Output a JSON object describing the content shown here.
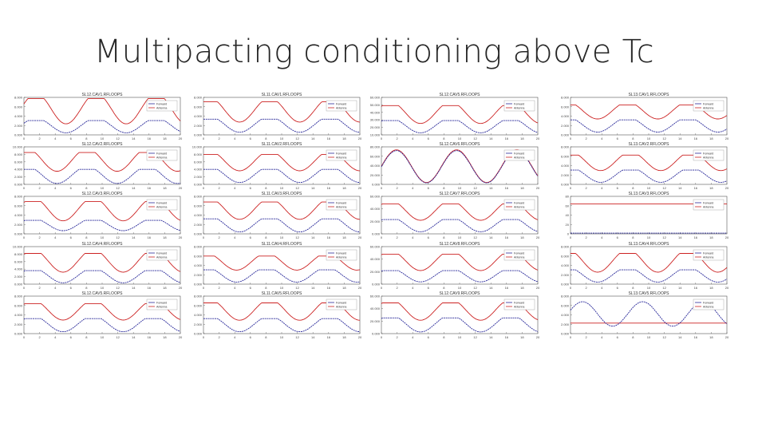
{
  "slide": {
    "title": "Multipacting conditioning above Tc"
  },
  "colors": {
    "forward": "#cc2222",
    "antenna": "#2a2a9a",
    "axis": "#555555",
    "grid": "#e6e6e6"
  },
  "chart_data": [
    {
      "type": "line",
      "title": "SL12.CAV1.RFLOOPS",
      "xlim": [
        0,
        20
      ],
      "yticks": [
        "0.000",
        "2.000",
        "4.000",
        "6.000",
        "8.000"
      ],
      "xticks": [
        "0",
        "2",
        "4",
        "6",
        "8",
        "10",
        "12",
        "14",
        "16",
        "18",
        "20"
      ],
      "legend": [
        "Forward",
        "Antenna"
      ],
      "legend_position": "top-right",
      "series": [
        {
          "name": "Forward",
          "level": 0.97,
          "low": 0.43,
          "phase": 0.05
        },
        {
          "name": "Antenna",
          "level": 0.38,
          "low": 0.12,
          "phase": 0.05
        }
      ]
    },
    {
      "type": "line",
      "title": "SL11.CAV1.RFLOOPS",
      "xlim": [
        0,
        20
      ],
      "yticks": [
        "0.000",
        "2.000",
        "4.000",
        "6.000",
        "8.000"
      ],
      "xticks": [
        "0",
        "2",
        "4",
        "6",
        "8",
        "10",
        "12",
        "14",
        "16",
        "18",
        "20"
      ],
      "legend": [
        "Forward",
        "Antenna"
      ],
      "legend_position": "top-right",
      "series": [
        {
          "name": "Forward",
          "level": 0.88,
          "low": 0.45,
          "phase": 0.15
        },
        {
          "name": "Antenna",
          "level": 0.42,
          "low": 0.14,
          "phase": 0.15
        }
      ]
    },
    {
      "type": "line",
      "title": "SL12.CAV5.RFLOOPS",
      "xlim": [
        0,
        20
      ],
      "yticks": [
        "10.000",
        "20.000",
        "30.000",
        "40.000",
        "50.000",
        "60.000"
      ],
      "xticks": [
        "0",
        "2",
        "4",
        "6",
        "8",
        "10",
        "12",
        "14",
        "16",
        "18",
        "20"
      ],
      "legend": [
        "Forward",
        "Antenna"
      ],
      "legend_position": "top-right",
      "series": [
        {
          "name": "Forward",
          "level": 0.78,
          "low": 0.4,
          "phase": 0.1
        },
        {
          "name": "Antenna",
          "level": 0.38,
          "low": 0.12,
          "phase": 0.1
        }
      ]
    },
    {
      "type": "line",
      "title": "SL13.CAV1.RFLOOPS",
      "xlim": [
        0,
        20
      ],
      "yticks": [
        "0.000",
        "2.000",
        "4.000",
        "6.000",
        "8.000"
      ],
      "xticks": [
        "0",
        "2",
        "4",
        "6",
        "8",
        "10",
        "12",
        "14",
        "16",
        "18",
        "20"
      ],
      "legend": [
        "Forward",
        "Antenna"
      ],
      "legend_position": "top-right",
      "series": [
        {
          "name": "Forward",
          "level": 0.8,
          "low": 0.5,
          "phase": 0.3
        },
        {
          "name": "Antenna",
          "level": 0.4,
          "low": 0.14,
          "phase": 0.3
        }
      ]
    },
    {
      "type": "line",
      "title": "SL12.CAV2.RFLOOPS",
      "xlim": [
        0,
        20
      ],
      "yticks": [
        "0.000",
        "2.000",
        "4.000",
        "6.000",
        "8.000",
        "10.000"
      ],
      "xticks": [
        "0",
        "2",
        "4",
        "6",
        "8",
        "10",
        "12",
        "14",
        "16",
        "18",
        "20"
      ],
      "legend": [
        "Forward",
        "Antenna"
      ],
      "legend_position": "top-right",
      "series": [
        {
          "name": "Forward",
          "level": 0.85,
          "low": 0.45,
          "phase": 0.2
        },
        {
          "name": "Antenna",
          "level": 0.4,
          "low": 0.1,
          "phase": 0.2
        }
      ]
    },
    {
      "type": "line",
      "title": "SL11.CAV2.RFLOOPS",
      "xlim": [
        0,
        20
      ],
      "yticks": [
        "0.000",
        "2.000",
        "4.000",
        "6.000",
        "8.000",
        "10.000"
      ],
      "xticks": [
        "0",
        "2",
        "4",
        "6",
        "8",
        "10",
        "12",
        "14",
        "16",
        "18",
        "20"
      ],
      "legend": [
        "Forward",
        "Antenna"
      ],
      "legend_position": "top-right",
      "series": [
        {
          "name": "Forward",
          "level": 0.8,
          "low": 0.45,
          "phase": 0.15
        },
        {
          "name": "Antenna",
          "level": 0.4,
          "low": 0.12,
          "phase": 0.15
        }
      ]
    },
    {
      "type": "line",
      "title": "SL12.CAV6.RFLOOPS",
      "xlim": [
        0,
        20
      ],
      "yticks": [
        "0.000",
        "20.000",
        "40.000",
        "60.000",
        "80.000"
      ],
      "xticks": [
        "0",
        "2",
        "4",
        "6",
        "8",
        "10",
        "12",
        "14",
        "16",
        "18",
        "20"
      ],
      "legend": [
        "Forward",
        "Antenna"
      ],
      "legend_position": "top-right",
      "series": [
        {
          "name": "Forward",
          "level": 0.92,
          "low": 0.05,
          "phase": 0.0,
          "pure": true
        },
        {
          "name": "Antenna",
          "level": 0.9,
          "low": 0.04,
          "phase": 0.0,
          "pure": true
        }
      ]
    },
    {
      "type": "line",
      "title": "SL13.CAV2.RFLOOPS",
      "xlim": [
        0,
        20
      ],
      "yticks": [
        "0.000",
        "2.000",
        "4.000",
        "6.000",
        "8.000"
      ],
      "xticks": [
        "0",
        "2",
        "4",
        "6",
        "8",
        "10",
        "12",
        "14",
        "16",
        "18",
        "20"
      ],
      "legend": [
        "Forward",
        "Antenna"
      ],
      "legend_position": "top-right",
      "series": [
        {
          "name": "Forward",
          "level": 0.78,
          "low": 0.45,
          "phase": 0.25
        },
        {
          "name": "Antenna",
          "level": 0.38,
          "low": 0.12,
          "phase": 0.25
        }
      ]
    },
    {
      "type": "line",
      "title": "SL12.CAV3.RFLOOPS",
      "xlim": [
        0,
        20
      ],
      "yticks": [
        "0.000",
        "2.000",
        "4.000",
        "6.000",
        "8.000"
      ],
      "xticks": [
        "0",
        "2",
        "4",
        "6",
        "8",
        "10",
        "12",
        "14",
        "16",
        "18",
        "20"
      ],
      "legend": [
        "Forward",
        "Antenna"
      ],
      "legend_position": "top-right",
      "series": [
        {
          "name": "Forward",
          "level": 0.86,
          "low": 0.45,
          "phase": 0.1
        },
        {
          "name": "Antenna",
          "level": 0.36,
          "low": 0.14,
          "phase": 0.1
        }
      ]
    },
    {
      "type": "line",
      "title": "SL11.CAV3.RFLOOPS",
      "xlim": [
        0,
        20
      ],
      "yticks": [
        "0.000",
        "2.000",
        "4.000",
        "6.000",
        "8.000"
      ],
      "xticks": [
        "0",
        "2",
        "4",
        "6",
        "8",
        "10",
        "12",
        "14",
        "16",
        "18",
        "20"
      ],
      "legend": [
        "Forward",
        "Antenna"
      ],
      "legend_position": "top-right",
      "series": [
        {
          "name": "Forward",
          "level": 0.85,
          "low": 0.48,
          "phase": 0.15
        },
        {
          "name": "Antenna",
          "level": 0.4,
          "low": 0.12,
          "phase": 0.15
        }
      ]
    },
    {
      "type": "line",
      "title": "SL12.CAV7.RFLOOPS",
      "xlim": [
        0,
        20
      ],
      "yticks": [
        "0.000",
        "20.000",
        "40.000",
        "60.000"
      ],
      "xticks": [
        "0",
        "2",
        "4",
        "6",
        "8",
        "10",
        "12",
        "14",
        "16",
        "18",
        "20"
      ],
      "legend": [
        "Forward",
        "Antenna"
      ],
      "legend_position": "top-right",
      "series": [
        {
          "name": "Forward",
          "level": 0.8,
          "low": 0.45,
          "phase": 0.1
        },
        {
          "name": "Antenna",
          "level": 0.38,
          "low": 0.12,
          "phase": 0.1
        }
      ]
    },
    {
      "type": "line",
      "title": "SL13.CAV3.RFLOOPS",
      "xlim": [
        0,
        20
      ],
      "yticks": [
        "0",
        "20",
        "40",
        "60",
        "80"
      ],
      "xticks": [
        "0",
        "2",
        "4",
        "6",
        "8",
        "10",
        "12",
        "14",
        "16",
        "18",
        "20"
      ],
      "legend": [
        "Forward",
        "Antenna"
      ],
      "legend_position": "top-right",
      "series": [
        {
          "name": "Forward",
          "level": 0.8,
          "low": 0.8,
          "phase": 0.0,
          "flat": true
        },
        {
          "name": "Antenna",
          "level": 0.02,
          "low": 0.02,
          "phase": 0.0,
          "flat": true
        }
      ]
    },
    {
      "type": "line",
      "title": "SL12.CAV4.RFLOOPS",
      "xlim": [
        0,
        20
      ],
      "yticks": [
        "0.000",
        "2.000",
        "4.000",
        "6.000",
        "8.000",
        "10.000"
      ],
      "xticks": [
        "0",
        "2",
        "4",
        "6",
        "8",
        "10",
        "12",
        "14",
        "16",
        "18",
        "20"
      ],
      "legend": [
        "Forward",
        "Antenna"
      ],
      "legend_position": "top-right",
      "series": [
        {
          "name": "Forward",
          "level": 0.82,
          "low": 0.42,
          "phase": 0.1
        },
        {
          "name": "Antenna",
          "level": 0.36,
          "low": 0.1,
          "phase": 0.1
        }
      ]
    },
    {
      "type": "line",
      "title": "SL11.CAV4.RFLOOPS",
      "xlim": [
        0,
        20
      ],
      "yticks": [
        "0.000",
        "2.000",
        "4.000",
        "6.000",
        "8.000"
      ],
      "xticks": [
        "0",
        "2",
        "4",
        "6",
        "8",
        "10",
        "12",
        "14",
        "16",
        "18",
        "20"
      ],
      "legend": [
        "Forward",
        "Antenna"
      ],
      "legend_position": "top-right",
      "series": [
        {
          "name": "Forward",
          "level": 0.75,
          "low": 0.45,
          "phase": 0.2
        },
        {
          "name": "Antenna",
          "level": 0.38,
          "low": 0.12,
          "phase": 0.2
        }
      ]
    },
    {
      "type": "line",
      "title": "SL12.CAV8.RFLOOPS",
      "xlim": [
        0,
        20
      ],
      "yticks": [
        "0.000",
        "20.000",
        "40.000",
        "60.000"
      ],
      "xticks": [
        "0",
        "2",
        "4",
        "6",
        "8",
        "10",
        "12",
        "14",
        "16",
        "18",
        "20"
      ],
      "legend": [
        "Forward",
        "Antenna"
      ],
      "legend_position": "top-right",
      "series": [
        {
          "name": "Forward",
          "level": 0.8,
          "low": 0.45,
          "phase": 0.1
        },
        {
          "name": "Antenna",
          "level": 0.36,
          "low": 0.12,
          "phase": 0.1
        }
      ]
    },
    {
      "type": "line",
      "title": "SL13.CAV4.RFLOOPS",
      "xlim": [
        0,
        20
      ],
      "yticks": [
        "0.000",
        "2.000",
        "4.000",
        "6.000",
        "8.000"
      ],
      "xticks": [
        "0",
        "2",
        "4",
        "6",
        "8",
        "10",
        "12",
        "14",
        "16",
        "18",
        "20"
      ],
      "legend": [
        "Forward",
        "Antenna"
      ],
      "legend_position": "top-right",
      "series": [
        {
          "name": "Forward",
          "level": 0.82,
          "low": 0.42,
          "phase": 0.3
        },
        {
          "name": "Antenna",
          "level": 0.38,
          "low": 0.12,
          "phase": 0.3
        }
      ]
    },
    {
      "type": "line",
      "title": "SL12.CAV5.RFLOOPS",
      "xlim": [
        0,
        20
      ],
      "yticks": [
        "0.000",
        "2.000",
        "4.000",
        "6.000",
        "8.000"
      ],
      "xticks": [
        "0",
        "2",
        "4",
        "6",
        "8",
        "10",
        "12",
        "14",
        "16",
        "18",
        "20"
      ],
      "legend": [
        "Forward",
        "Antenna"
      ],
      "legend_position": "top-right",
      "series": [
        {
          "name": "Forward",
          "level": 0.8,
          "low": 0.45,
          "phase": 0.1
        },
        {
          "name": "Antenna",
          "level": 0.4,
          "low": 0.12,
          "phase": 0.1
        }
      ]
    },
    {
      "type": "line",
      "title": "SL11.CAV5.RFLOOPS",
      "xlim": [
        0,
        20
      ],
      "yticks": [
        "0.000",
        "2.000",
        "4.000",
        "6.000",
        "8.000"
      ],
      "xticks": [
        "0",
        "2",
        "4",
        "6",
        "8",
        "10",
        "12",
        "14",
        "16",
        "18",
        "20"
      ],
      "legend": [
        "Forward",
        "Antenna"
      ],
      "legend_position": "top-right",
      "series": [
        {
          "name": "Forward",
          "level": 0.82,
          "low": 0.45,
          "phase": 0.15
        },
        {
          "name": "Antenna",
          "level": 0.4,
          "low": 0.12,
          "phase": 0.15
        }
      ]
    },
    {
      "type": "line",
      "title": "SL12.CAV9.RFLOOPS",
      "xlim": [
        0,
        20
      ],
      "yticks": [
        "0.000",
        "20.000",
        "40.000",
        "60.000"
      ],
      "xticks": [
        "0",
        "2",
        "4",
        "6",
        "8",
        "10",
        "12",
        "14",
        "16",
        "18",
        "20"
      ],
      "legend": [
        "Forward",
        "Antenna"
      ],
      "legend_position": "top-right",
      "series": [
        {
          "name": "Forward",
          "level": 0.82,
          "low": 0.45,
          "phase": 0.1
        },
        {
          "name": "Antenna",
          "level": 0.42,
          "low": 0.12,
          "phase": 0.1
        }
      ]
    },
    {
      "type": "line",
      "title": "SL13.CAV5.RFLOOPS",
      "xlim": [
        0,
        20
      ],
      "yticks": [
        "0.000",
        "2.000",
        "4.000",
        "6.000",
        "8.000"
      ],
      "xticks": [
        "0",
        "2",
        "4",
        "6",
        "8",
        "10",
        "12",
        "14",
        "16",
        "18",
        "20"
      ],
      "legend": [
        "Forward",
        "Antenna"
      ],
      "legend_position": "top-right",
      "series": [
        {
          "name": "Forward",
          "level": 0.28,
          "low": 0.28,
          "phase": 0.0,
          "flat": true
        },
        {
          "name": "Antenna",
          "level": 0.85,
          "low": 0.2,
          "phase": 0.05,
          "pure": true
        }
      ]
    }
  ]
}
